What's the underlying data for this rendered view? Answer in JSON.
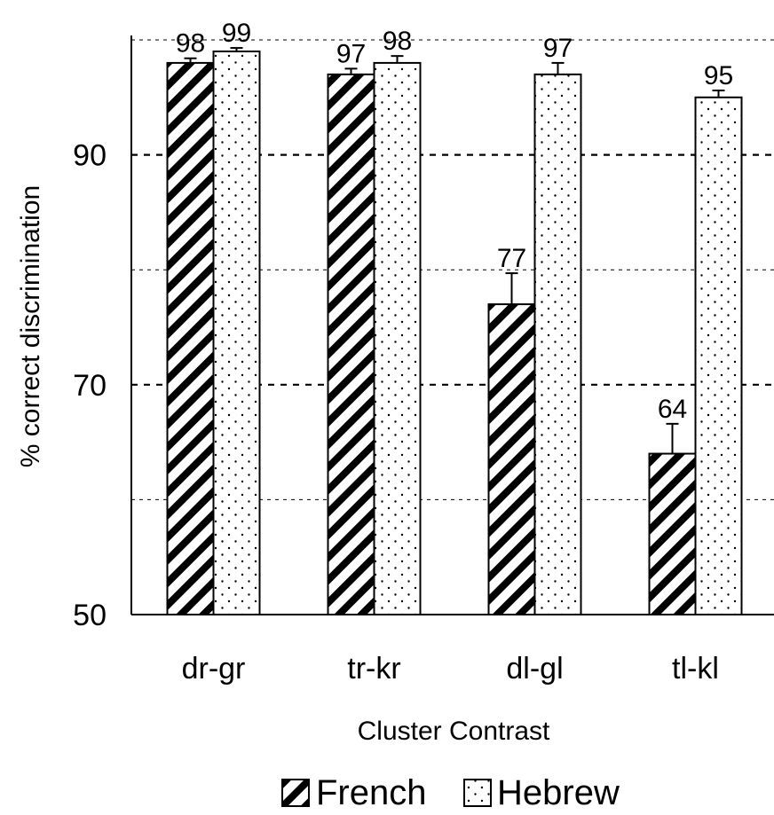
{
  "chart_data": {
    "type": "bar",
    "title": "",
    "xlabel": "Cluster Contrast",
    "ylabel": "% correct discrimination",
    "categories": [
      "dr-gr",
      "tr-kr",
      "dl-gl",
      "tl-kl"
    ],
    "series": [
      {
        "name": "French",
        "values": [
          98,
          97,
          77,
          64
        ],
        "errors": [
          0.4,
          0.5,
          2.7,
          2.6
        ],
        "labels": [
          "98",
          "97",
          "77",
          "64"
        ]
      },
      {
        "name": "Hebrew",
        "values": [
          99,
          98,
          97,
          95
        ],
        "errors": [
          0.3,
          0.6,
          1.0,
          0.6
        ],
        "labels": [
          "99",
          "98",
          "97",
          "95"
        ]
      }
    ],
    "ylim": [
      50,
      100
    ],
    "yticks_labeled": [
      "50",
      "70",
      "90"
    ],
    "gridlines": [
      60,
      70,
      80,
      90,
      100
    ],
    "grid": true,
    "legend": "bottom",
    "patterns": {
      "French": "diagonal-hatch",
      "Hebrew": "dots"
    }
  }
}
